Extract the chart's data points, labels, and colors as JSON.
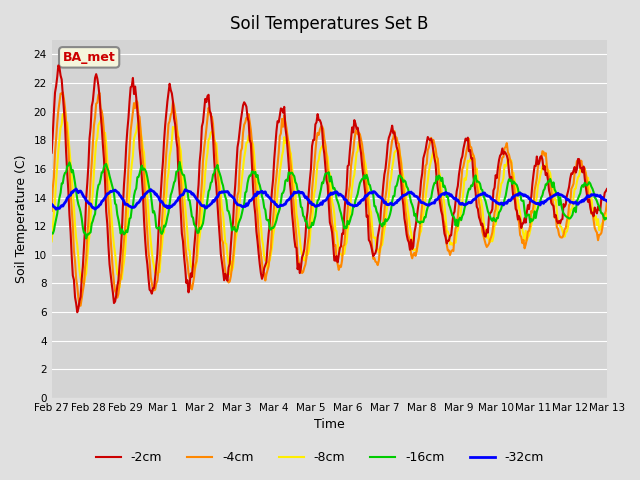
{
  "title": "Soil Temperatures Set B",
  "xlabel": "Time",
  "ylabel": "Soil Temperature (C)",
  "fig_bg_color": "#e0e0e0",
  "plot_bg_color": "#d4d4d4",
  "ylim": [
    0,
    25
  ],
  "yticks": [
    0,
    2,
    4,
    6,
    8,
    10,
    12,
    14,
    16,
    18,
    20,
    22,
    24
  ],
  "x_labels": [
    "Feb 27",
    "Feb 28",
    "Feb 29",
    "Mar 1",
    "Mar 2",
    "Mar 3",
    "Mar 4",
    "Mar 5",
    "Mar 6",
    "Mar 7",
    "Mar 8",
    "Mar 9",
    "Mar 10",
    "Mar 11",
    "Mar 12",
    "Mar 13"
  ],
  "series_labels": [
    "-2cm",
    "-4cm",
    "-8cm",
    "-16cm",
    "-32cm"
  ],
  "series_colors": [
    "#cc0000",
    "#ff8800",
    "#ffee00",
    "#00cc00",
    "#0000ff"
  ],
  "series_linewidths": [
    1.5,
    1.5,
    1.5,
    1.5,
    2.0
  ],
  "legend_label": "BA_met",
  "legend_text_color": "#cc0000",
  "legend_bg": "#f5f5dc",
  "legend_border_color": "#888888"
}
